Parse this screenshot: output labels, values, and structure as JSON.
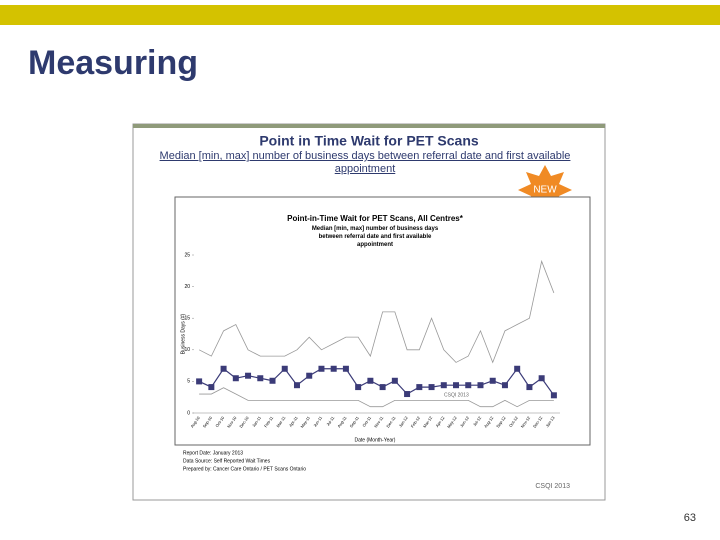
{
  "slide_title": "Measuring",
  "page_number": "63",
  "panel": {
    "title": "Point in Time Wait for PET Scans",
    "subtitle": "Median [min, max] number of business days between referral date and first available appointment",
    "badge": "NEW",
    "notes": [
      "Report Date: January 2013",
      "Data Source: Self Reported Wait Times",
      "Prepared by: Cancer Care Ontario / PET Scans Ontario"
    ],
    "credit": "CSQI 2013"
  },
  "chart_data": {
    "type": "line",
    "title": "Point-in-Time Wait for PET Scans, All Centres*",
    "subtitle": "Median [min, max] number of business days between referral date and first available appointment",
    "xlabel": "Date (Month-Year)",
    "ylabel": "Business Days (#)",
    "watermark": "CSQI 2013",
    "categories": [
      "Aug-10",
      "Sep-10",
      "Oct-10",
      "Nov-10",
      "Dec-10",
      "Jan-11",
      "Feb-11",
      "Mar-11",
      "Apr-11",
      "May-11",
      "Jun-11",
      "Jul-11",
      "Aug-11",
      "Sep-11",
      "Oct-11",
      "Nov-11",
      "Dec-11",
      "Jan-12",
      "Feb-12",
      "Mar-12",
      "Apr-12",
      "May-12",
      "Jun-12",
      "Jul-12",
      "Aug-12",
      "Sep-12",
      "Oct-12",
      "Nov-12",
      "Dec-12",
      "Jan-13"
    ],
    "series": [
      {
        "color": "#999999",
        "marker": false,
        "values": [
          10,
          9,
          13,
          14,
          10,
          9,
          9,
          9,
          10,
          12,
          10,
          11,
          12,
          12,
          9,
          16,
          16,
          10,
          10,
          15,
          10,
          8,
          9,
          13,
          8,
          13,
          14,
          15,
          24,
          19
        ]
      },
      {
        "color": "#999999",
        "marker": false,
        "values": [
          3,
          3,
          4,
          3,
          2,
          2,
          2,
          2,
          2,
          2,
          2,
          2,
          2,
          2,
          1,
          1,
          2,
          2,
          2,
          2,
          2,
          2,
          2,
          1,
          1,
          2,
          1,
          2,
          2,
          2
        ]
      },
      {
        "color": "#3b3b78",
        "marker": true,
        "values": [
          5,
          4.1,
          7,
          5.5,
          5.9,
          5.5,
          5.1,
          7,
          4.4,
          5.9,
          7,
          7,
          7,
          4.1,
          5.1,
          4.1,
          5.1,
          3,
          4.1,
          4.1,
          4.4,
          4.4,
          4.4,
          4.4,
          5.1,
          4.4,
          7,
          4.1,
          5.5,
          2.8
        ]
      }
    ],
    "ylim": [
      0,
      25
    ],
    "yticks": [
      0,
      5,
      10,
      15,
      20,
      25
    ],
    "grid": false
  }
}
